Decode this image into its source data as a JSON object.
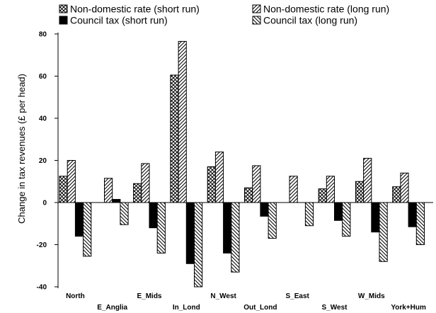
{
  "chart_data": {
    "type": "bar",
    "title": "",
    "xlabel": "",
    "ylabel": "Change in tax revenues (£ per head)",
    "ylim": [
      -40,
      80
    ],
    "yticks": [
      -40,
      -20,
      0,
      20,
      40,
      60,
      80
    ],
    "grid": false,
    "legend_position": "top",
    "categories": [
      "North",
      "E_Anglia",
      "E_Mids",
      "In_Lond",
      "N_West",
      "Out_Lond",
      "S_East",
      "S_West",
      "W_Mids",
      "York+Hum"
    ],
    "series": [
      {
        "name": "Non-domestic rate (short run)",
        "pattern": "crosshatch",
        "values": [
          12.5,
          0,
          9,
          60.5,
          17,
          7,
          0,
          6.5,
          10,
          7.5
        ]
      },
      {
        "name": "Non-domestic rate (long run)",
        "pattern": "diagonal",
        "values": [
          20,
          11.5,
          18.5,
          76.5,
          24,
          17.5,
          12.5,
          12.5,
          21,
          14
        ]
      },
      {
        "name": "Council tax (short run)",
        "pattern": "solid",
        "values": [
          -16,
          1.5,
          -12,
          -29,
          -24,
          -6.5,
          0,
          -8.5,
          -14,
          -11.5
        ]
      },
      {
        "name": "Council tax (long run)",
        "pattern": "backdiagonal",
        "values": [
          -25.5,
          -10.5,
          -24,
          -40,
          -33,
          -17,
          -11,
          -16,
          -28,
          -20
        ]
      }
    ]
  }
}
